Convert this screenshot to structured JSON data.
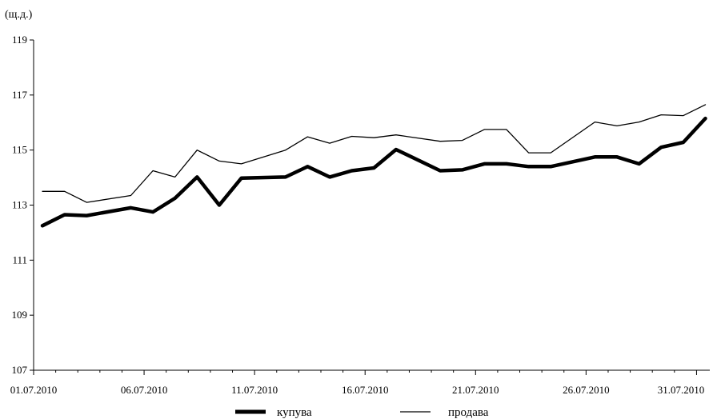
{
  "chart_data": {
    "type": "line",
    "unit": "(щ.д.)",
    "ylim": [
      107,
      119
    ],
    "yticks": [
      107,
      109,
      111,
      113,
      115,
      117,
      119
    ],
    "xlim": [
      1,
      31.6
    ],
    "xticks": [
      {
        "day": 1,
        "label": "01.07.2010"
      },
      {
        "day": 6,
        "label": "06.07.2010"
      },
      {
        "day": 11,
        "label": "11.07.2010"
      },
      {
        "day": 16,
        "label": "16.07.2010"
      },
      {
        "day": 21,
        "label": "21.07.2010"
      },
      {
        "day": 26,
        "label": "26.07.2010"
      },
      {
        "day": 31,
        "label": "31.07.2010"
      }
    ],
    "grid": false,
    "legend_position": "bottom",
    "series": [
      {
        "name": "купува",
        "style": "thick",
        "color": "#000000",
        "points": [
          [
            1.4,
            112.25
          ],
          [
            2.4,
            112.65
          ],
          [
            3.4,
            112.62
          ],
          [
            5.4,
            112.9
          ],
          [
            6.4,
            112.75
          ],
          [
            7.4,
            113.25
          ],
          [
            8.4,
            114.02
          ],
          [
            9.4,
            113.0
          ],
          [
            10.4,
            113.98
          ],
          [
            12.4,
            114.02
          ],
          [
            13.4,
            114.4
          ],
          [
            14.4,
            114.02
          ],
          [
            15.4,
            114.25
          ],
          [
            16.4,
            114.35
          ],
          [
            17.4,
            115.02
          ],
          [
            19.4,
            114.25
          ],
          [
            20.4,
            114.28
          ],
          [
            21.4,
            114.5
          ],
          [
            22.4,
            114.5
          ],
          [
            23.4,
            114.4
          ],
          [
            24.4,
            114.4
          ],
          [
            26.4,
            114.75
          ],
          [
            27.4,
            114.75
          ],
          [
            28.4,
            114.5
          ],
          [
            29.4,
            115.1
          ],
          [
            30.4,
            115.28
          ],
          [
            31.4,
            116.15
          ]
        ]
      },
      {
        "name": "продава",
        "style": "thin",
        "color": "#000000",
        "points": [
          [
            1.4,
            113.5
          ],
          [
            2.4,
            113.5
          ],
          [
            3.4,
            113.1
          ],
          [
            5.4,
            113.35
          ],
          [
            6.4,
            114.25
          ],
          [
            7.4,
            114.02
          ],
          [
            8.4,
            115.0
          ],
          [
            9.4,
            114.6
          ],
          [
            10.4,
            114.5
          ],
          [
            12.4,
            115.0
          ],
          [
            13.4,
            115.48
          ],
          [
            14.4,
            115.25
          ],
          [
            15.4,
            115.5
          ],
          [
            16.4,
            115.45
          ],
          [
            17.4,
            115.55
          ],
          [
            19.4,
            115.32
          ],
          [
            20.4,
            115.35
          ],
          [
            21.4,
            115.75
          ],
          [
            22.4,
            115.75
          ],
          [
            23.4,
            114.9
          ],
          [
            24.4,
            114.9
          ],
          [
            26.4,
            116.02
          ],
          [
            27.4,
            115.88
          ],
          [
            28.4,
            116.02
          ],
          [
            29.4,
            116.28
          ],
          [
            30.4,
            116.25
          ],
          [
            31.4,
            116.65
          ]
        ]
      }
    ]
  }
}
